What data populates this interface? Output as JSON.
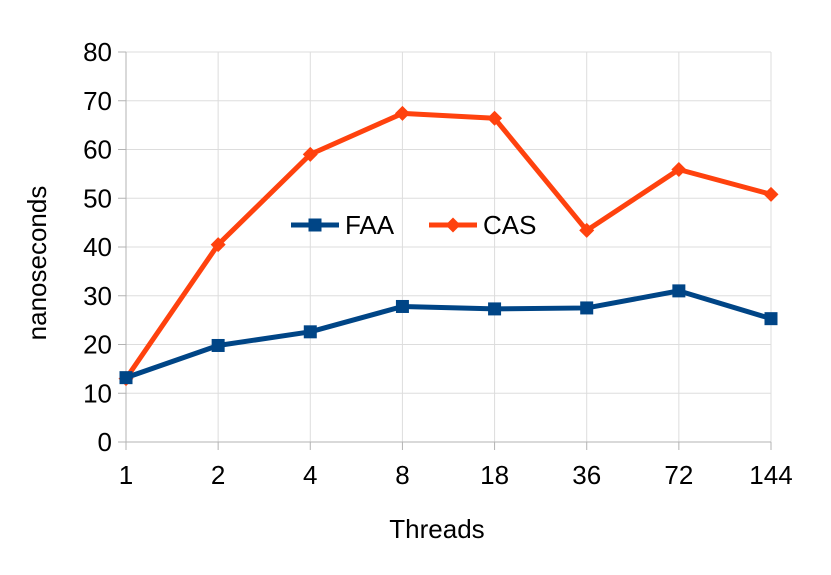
{
  "chart_data": {
    "type": "line",
    "title": "",
    "xlabel": "Threads",
    "ylabel": "nanoseconds",
    "categories": [
      "1",
      "2",
      "4",
      "8",
      "18",
      "36",
      "72",
      "144"
    ],
    "ylim": [
      0,
      80
    ],
    "yticks": [
      0,
      10,
      20,
      30,
      40,
      50,
      60,
      70,
      80
    ],
    "grid": true,
    "legend": "center",
    "series": [
      {
        "name": "FAA",
        "color": "#004586",
        "marker": "square",
        "values": [
          13.2,
          19.8,
          22.6,
          27.8,
          27.3,
          27.5,
          31.0,
          25.3
        ]
      },
      {
        "name": "CAS",
        "color": "#ff420e",
        "marker": "diamond",
        "values": [
          13.0,
          40.5,
          59.0,
          67.4,
          66.4,
          43.4,
          55.9,
          50.8
        ]
      }
    ]
  }
}
